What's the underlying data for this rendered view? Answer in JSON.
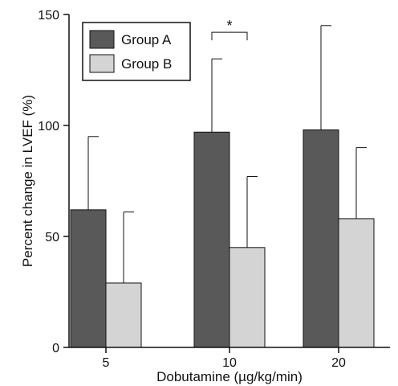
{
  "chart_data": {
    "type": "bar",
    "title": "",
    "xlabel": "Dobutamine (µg/kg/min)",
    "ylabel": "Percent change in LVEF (%)",
    "categories": [
      "5",
      "10",
      "20"
    ],
    "ylim": [
      0,
      150
    ],
    "yticks": [
      "0",
      "50",
      "100",
      "150"
    ],
    "series": [
      {
        "name": "Group A",
        "values": [
          62,
          97,
          98
        ],
        "errors": [
          33,
          33,
          47
        ],
        "color": "#595959"
      },
      {
        "name": "Group B",
        "values": [
          29,
          45,
          58
        ],
        "errors": [
          32,
          32,
          32
        ],
        "color": "#d4d4d4"
      }
    ],
    "legend_position": "top-left",
    "grid": false,
    "annotations": [
      {
        "text": "*",
        "category_index": 1,
        "bracket": true,
        "y": 142
      }
    ]
  }
}
